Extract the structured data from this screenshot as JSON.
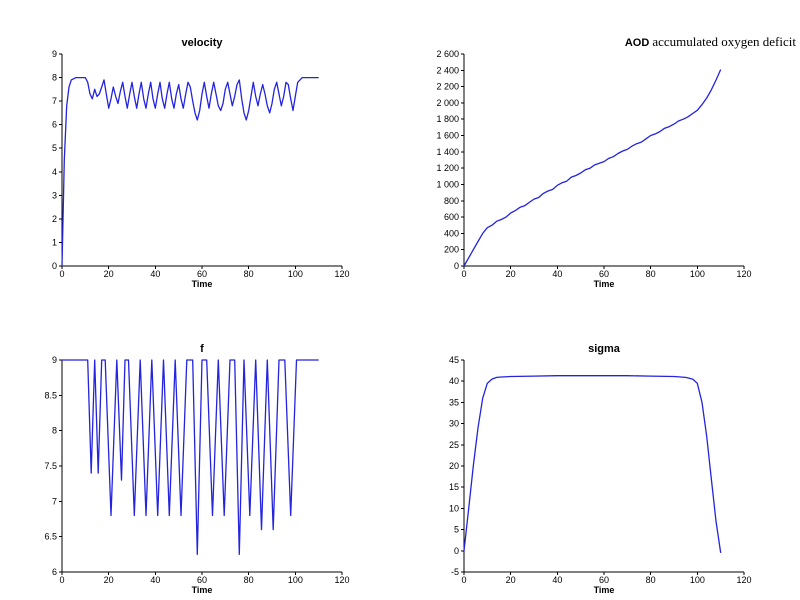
{
  "chart_data": [
    {
      "type": "line",
      "title": "velocity",
      "subtitle": "",
      "xlabel": "Time",
      "ylabel": "",
      "xlim": [
        0,
        120
      ],
      "ylim": [
        0,
        9
      ],
      "xticks": [
        "0",
        "20",
        "40",
        "60",
        "80",
        "100",
        "120"
      ],
      "yticks": [
        "0",
        "1",
        "2",
        "3",
        "4",
        "5",
        "6",
        "7",
        "8",
        "9"
      ],
      "grid": false,
      "color": "#2323e0",
      "series": [
        {
          "x": [
            0,
            1,
            2,
            3,
            4,
            6,
            8,
            10,
            11,
            12,
            13,
            14,
            15,
            16,
            17,
            18,
            19,
            20,
            21,
            22,
            23,
            24,
            25,
            26,
            27,
            28,
            29,
            30,
            31,
            32,
            33,
            34,
            35,
            36,
            37,
            38,
            39,
            40,
            41,
            42,
            43,
            44,
            45,
            46,
            47,
            48,
            49,
            50,
            51,
            52,
            53,
            54,
            55,
            56,
            57,
            58,
            59,
            60,
            61,
            62,
            63,
            64,
            65,
            66,
            67,
            68,
            69,
            70,
            71,
            72,
            73,
            74,
            75,
            76,
            77,
            78,
            79,
            80,
            81,
            82,
            83,
            84,
            85,
            86,
            87,
            88,
            89,
            90,
            91,
            92,
            93,
            94,
            95,
            96,
            97,
            98,
            99,
            100,
            101,
            103,
            105,
            110
          ],
          "y": [
            0,
            4.5,
            6.8,
            7.6,
            7.9,
            8.0,
            8.0,
            8.0,
            7.8,
            7.3,
            7.1,
            7.5,
            7.2,
            7.3,
            7.6,
            7.9,
            7.3,
            6.7,
            7.1,
            7.6,
            7.2,
            6.9,
            7.4,
            7.8,
            7.2,
            6.7,
            7.3,
            7.8,
            7.2,
            6.7,
            7.3,
            7.8,
            7.1,
            6.7,
            7.3,
            7.8,
            7.1,
            6.7,
            7.3,
            7.8,
            7.1,
            6.7,
            7.3,
            7.8,
            7.1,
            6.7,
            7.3,
            7.7,
            7.1,
            6.7,
            7.3,
            7.8,
            7.6,
            7.0,
            6.5,
            6.2,
            6.6,
            7.3,
            7.8,
            7.2,
            6.7,
            7.3,
            7.8,
            7.3,
            6.8,
            6.6,
            6.9,
            7.5,
            7.8,
            7.3,
            6.8,
            7.2,
            7.7,
            7.9,
            7.1,
            6.5,
            6.2,
            6.6,
            7.2,
            7.8,
            7.2,
            6.8,
            7.3,
            7.7,
            7.3,
            6.8,
            6.5,
            6.9,
            7.5,
            7.8,
            7.3,
            6.8,
            7.2,
            7.8,
            7.7,
            7.1,
            6.6,
            7.2,
            7.8,
            8.0,
            8.0,
            8.0
          ]
        }
      ]
    },
    {
      "type": "line",
      "title": "AOD",
      "subtitle": "accumulated oxygen deficit",
      "xlabel": "Time",
      "ylabel": "",
      "xlim": [
        0,
        120
      ],
      "ylim": [
        0,
        2600
      ],
      "xticks": [
        "0",
        "20",
        "40",
        "60",
        "80",
        "100",
        "120"
      ],
      "yticks": [
        "0",
        "200",
        "400",
        "600",
        "800",
        "1 000",
        "1 200",
        "1 400",
        "1 600",
        "1 800",
        "2 000",
        "2 200",
        "2 400",
        "2 600"
      ],
      "grid": false,
      "color": "#2323e0",
      "series": [
        {
          "x": [
            0,
            2,
            4,
            6,
            8,
            10,
            12,
            14,
            16,
            18,
            20,
            22,
            24,
            26,
            28,
            30,
            32,
            34,
            36,
            38,
            40,
            42,
            44,
            46,
            48,
            50,
            52,
            54,
            56,
            58,
            60,
            62,
            64,
            66,
            68,
            70,
            72,
            74,
            76,
            78,
            80,
            82,
            84,
            86,
            88,
            90,
            92,
            94,
            96,
            98,
            100,
            102,
            104,
            106,
            108,
            110
          ],
          "y": [
            0,
            100,
            200,
            300,
            400,
            470,
            500,
            550,
            570,
            600,
            650,
            680,
            720,
            740,
            780,
            820,
            840,
            890,
            920,
            940,
            990,
            1020,
            1040,
            1090,
            1110,
            1140,
            1180,
            1200,
            1240,
            1260,
            1280,
            1320,
            1340,
            1380,
            1410,
            1430,
            1470,
            1500,
            1520,
            1560,
            1600,
            1620,
            1650,
            1690,
            1710,
            1740,
            1780,
            1800,
            1830,
            1870,
            1910,
            1980,
            2060,
            2160,
            2280,
            2410
          ]
        }
      ]
    },
    {
      "type": "line",
      "title": "f",
      "subtitle": "",
      "xlabel": "Time",
      "ylabel": "",
      "xlim": [
        0,
        120
      ],
      "ylim": [
        6,
        9
      ],
      "xticks": [
        "0",
        "20",
        "40",
        "60",
        "80",
        "100",
        "120"
      ],
      "yticks": [
        "6",
        "6.5",
        "7",
        "7.5",
        "8",
        "8.5",
        "9"
      ],
      "grid": false,
      "color": "#2323e0",
      "series": [
        {
          "x": [
            0,
            11,
            12.5,
            14,
            15.5,
            17,
            18.5,
            21,
            23.5,
            25.5,
            27,
            28.5,
            31,
            33.5,
            36,
            38.5,
            41,
            43.5,
            46,
            48.5,
            51,
            53.5,
            56,
            58,
            60,
            62,
            64.5,
            67,
            69.5,
            72,
            74,
            76,
            78,
            80.5,
            83,
            85.5,
            88,
            90.5,
            93,
            95.5,
            98,
            100.5,
            105,
            110
          ],
          "y": [
            9,
            9,
            7.4,
            9,
            7.4,
            9,
            9,
            6.8,
            9,
            7.3,
            9,
            9,
            6.8,
            9,
            6.8,
            9,
            6.8,
            9,
            6.8,
            9,
            6.8,
            9,
            9,
            6.25,
            9,
            9,
            6.8,
            9,
            6.8,
            9,
            9,
            6.25,
            9,
            6.8,
            9,
            6.6,
            9,
            6.6,
            9,
            9,
            6.8,
            9,
            9,
            9
          ]
        }
      ]
    },
    {
      "type": "line",
      "title": "sigma",
      "subtitle": "",
      "xlabel": "Time",
      "ylabel": "",
      "xlim": [
        0,
        120
      ],
      "ylim": [
        -5,
        45
      ],
      "xticks": [
        "0",
        "20",
        "40",
        "60",
        "80",
        "100",
        "120"
      ],
      "yticks": [
        "-5",
        "0",
        "5",
        "10",
        "15",
        "20",
        "25",
        "30",
        "35",
        "40",
        "45"
      ],
      "grid": false,
      "color": "#2323e0",
      "series": [
        {
          "x": [
            0,
            2,
            4,
            6,
            8,
            10,
            12,
            14,
            16,
            20,
            30,
            40,
            50,
            60,
            70,
            80,
            90,
            95,
            98,
            100,
            102,
            104,
            106,
            108,
            110
          ],
          "y": [
            0,
            10,
            20,
            29,
            36,
            39.5,
            40.5,
            40.9,
            41.0,
            41.1,
            41.2,
            41.3,
            41.3,
            41.3,
            41.3,
            41.2,
            41.1,
            40.9,
            40.5,
            39.5,
            35.0,
            27.0,
            17.0,
            7.0,
            -0.5
          ]
        }
      ]
    }
  ]
}
